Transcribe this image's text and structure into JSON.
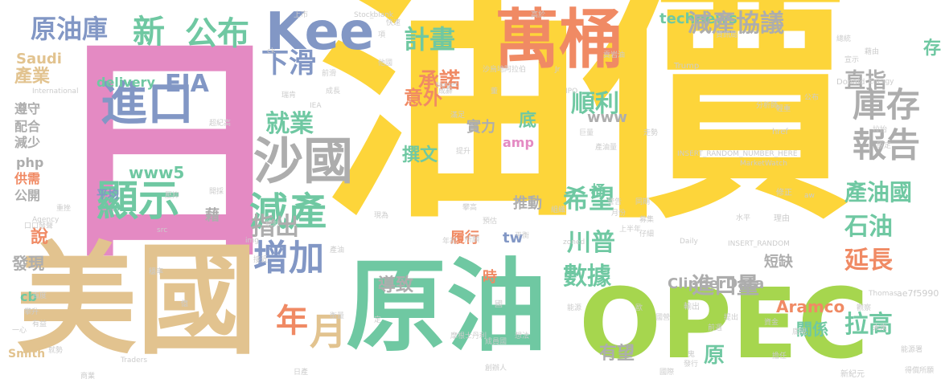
{
  "colors": {
    "yellow": "#FDD53A",
    "pink": "#E48AC3",
    "tan": "#E2C38F",
    "teal": "#6FC8A2",
    "green": "#A6D64E",
    "slate": "#8297C5",
    "gray": "#ADADAD",
    "orange": "#F08A64",
    "lightgray": "#CCCCCC"
  },
  "words": [
    {
      "text": "油價",
      "color": "yellow",
      "size": 330,
      "vertical": false
    },
    {
      "text": "日",
      "color": "pink",
      "size": 300,
      "vertical": false
    },
    {
      "text": "美國",
      "color": "tan",
      "size": 150,
      "vertical": false
    },
    {
      "text": "原油",
      "color": "teal",
      "size": 125,
      "vertical": false
    },
    {
      "text": "OPEC",
      "color": "green",
      "size": 120,
      "vertical": false
    },
    {
      "text": "萬桶",
      "color": "orange",
      "size": 80,
      "vertical": false
    },
    {
      "text": "Kee",
      "color": "slate",
      "size": 64,
      "vertical": false
    },
    {
      "text": "沙國",
      "color": "gray",
      "size": 62,
      "vertical": false
    },
    {
      "text": "進口",
      "color": "slate",
      "size": 58,
      "vertical": false
    },
    {
      "text": "顯示",
      "color": "teal",
      "size": 52,
      "vertical": false
    },
    {
      "text": "減產",
      "color": "teal",
      "size": 48,
      "vertical": false
    },
    {
      "text": "增加",
      "color": "slate",
      "size": 44,
      "vertical": false
    },
    {
      "text": "月",
      "color": "tan",
      "size": 46,
      "vertical": false
    },
    {
      "text": "年",
      "color": "orange",
      "size": 40,
      "vertical": false
    },
    {
      "text": "新",
      "color": "teal",
      "size": 40,
      "vertical": false
    },
    {
      "text": "公布",
      "color": "teal",
      "size": 40,
      "vertical": false
    },
    {
      "text": "原油庫",
      "color": "slate",
      "size": 32,
      "vertical": false
    },
    {
      "text": "下滑",
      "color": "slate",
      "size": 34,
      "vertical": false
    },
    {
      "text": "EIA",
      "color": "slate",
      "size": 30,
      "vertical": false
    },
    {
      "text": "產業",
      "color": "tan",
      "size": 22,
      "vertical": false
    },
    {
      "text": "Saudi",
      "color": "tan",
      "size": 18,
      "vertical": false
    },
    {
      "text": "delivery",
      "color": "teal",
      "size": 16,
      "vertical": false
    },
    {
      "text": "遵守",
      "color": "gray",
      "size": 16,
      "vertical": false
    },
    {
      "text": "配合",
      "color": "gray",
      "size": 16,
      "vertical": false
    },
    {
      "text": "減少",
      "color": "gray",
      "size": 16,
      "vertical": false
    },
    {
      "text": "php",
      "color": "gray",
      "size": 16,
      "vertical": false
    },
    {
      "text": "供需",
      "color": "orange",
      "size": 16,
      "vertical": false
    },
    {
      "text": "公開",
      "color": "gray",
      "size": 16,
      "vertical": false
    },
    {
      "text": "說",
      "color": "orange",
      "size": 22,
      "vertical": false
    },
    {
      "text": "發現",
      "color": "gray",
      "size": 20,
      "vertical": false
    },
    {
      "text": "cb",
      "color": "teal",
      "size": 16,
      "vertical": false
    },
    {
      "text": "Smith",
      "color": "tan",
      "size": 14,
      "vertical": false
    },
    {
      "text": "www5",
      "color": "teal",
      "size": 20,
      "vertical": false
    },
    {
      "text": "平均",
      "color": "slate",
      "size": 14,
      "vertical": false
    },
    {
      "text": "就業",
      "color": "teal",
      "size": 30,
      "vertical": false
    },
    {
      "text": "計畫",
      "color": "teal",
      "size": 32,
      "vertical": false
    },
    {
      "text": "承諾",
      "color": "orange",
      "size": 26,
      "vertical": false
    },
    {
      "text": "意外",
      "color": "orange",
      "size": 24,
      "vertical": false
    },
    {
      "text": "撰文",
      "color": "teal",
      "size": 22,
      "vertical": false
    },
    {
      "text": "指出",
      "color": "gray",
      "size": 30,
      "vertical": false
    },
    {
      "text": "導致",
      "color": "gray",
      "size": 22,
      "vertical": false
    },
    {
      "text": "technews",
      "color": "teal",
      "size": 18,
      "vertical": false
    },
    {
      "text": "減產協議",
      "color": "gray",
      "size": 30,
      "vertical": false
    },
    {
      "text": "直指",
      "color": "gray",
      "size": 26,
      "vertical": false
    },
    {
      "text": "順利",
      "color": "teal",
      "size": 30,
      "vertical": false
    },
    {
      "text": "www",
      "color": "gray",
      "size": 18,
      "vertical": false
    },
    {
      "text": "庫存",
      "color": "gray",
      "size": 42,
      "vertical": false
    },
    {
      "text": "報告",
      "color": "gray",
      "size": 42,
      "vertical": false
    },
    {
      "text": "產油國",
      "color": "teal",
      "size": 28,
      "vertical": false
    },
    {
      "text": "石油",
      "color": "teal",
      "size": 30,
      "vertical": false
    },
    {
      "text": "延長",
      "color": "orange",
      "size": 30,
      "vertical": false
    },
    {
      "text": "拉高",
      "color": "teal",
      "size": 30,
      "vertical": false
    },
    {
      "text": "希望",
      "color": "teal",
      "size": 32,
      "vertical": false
    },
    {
      "text": "川普",
      "color": "teal",
      "size": 30,
      "vertical": false
    },
    {
      "text": "數據",
      "color": "teal",
      "size": 30,
      "vertical": false
    },
    {
      "text": "進口量",
      "color": "gray",
      "size": 28,
      "vertical": false
    },
    {
      "text": "Aramco",
      "color": "orange",
      "size": 20,
      "vertical": false
    },
    {
      "text": "ClipperData",
      "color": "gray",
      "size": 18,
      "vertical": false
    },
    {
      "text": "短缺",
      "color": "gray",
      "size": 18,
      "vertical": false
    },
    {
      "text": "有望",
      "color": "gray",
      "size": 22,
      "vertical": false
    },
    {
      "text": "關係",
      "color": "teal",
      "size": 20,
      "vertical": false
    },
    {
      "text": "原",
      "color": "teal",
      "size": 26,
      "vertical": false
    },
    {
      "text": "推動",
      "color": "gray",
      "size": 18,
      "vertical": false
    },
    {
      "text": "履行",
      "color": "orange",
      "size": 18,
      "vertical": false
    },
    {
      "text": "tw",
      "color": "slate",
      "size": 18,
      "vertical": false
    },
    {
      "text": "實力",
      "color": "gray",
      "size": 18,
      "vertical": false
    },
    {
      "text": "底",
      "color": "teal",
      "size": 22,
      "vertical": false
    },
    {
      "text": "amp",
      "color": "pink",
      "size": 16,
      "vertical": false
    },
    {
      "text": "桶",
      "color": "teal",
      "size": 18,
      "vertical": false
    },
    {
      "text": "時",
      "color": "orange",
      "size": 18,
      "vertical": false
    },
    {
      "text": "存",
      "color": "teal",
      "size": 22,
      "vertical": false
    },
    {
      "text": "藉",
      "color": "gray",
      "size": 18,
      "vertical": false
    },
    {
      "text": "Trump",
      "color": "lightgray",
      "size": 10,
      "vertical": false
    },
    {
      "text": "Donald",
      "color": "lightgray",
      "size": 10,
      "vertical": false
    },
    {
      "text": "MarketWatch",
      "color": "lightgray",
      "size": 9,
      "vertical": false
    },
    {
      "text": "INSERT_RANDOM_NUMBER_HERE",
      "color": "lightgray",
      "size": 9,
      "vertical": false
    },
    {
      "text": "INSERT_RANDOM",
      "color": "lightgray",
      "size": 9,
      "vertical": false
    },
    {
      "text": "href",
      "color": "lightgray",
      "size": 10,
      "vertical": false
    },
    {
      "text": "Energy",
      "color": "lightgray",
      "size": 9,
      "vertical": false
    },
    {
      "text": "Thomas",
      "color": "lightgray",
      "size": 9,
      "vertical": false
    },
    {
      "text": "Traders",
      "color": "lightgray",
      "size": 9,
      "vertical": false
    },
    {
      "text": "Daily",
      "color": "lightgray",
      "size": 9,
      "vertical": false
    },
    {
      "text": "Stock",
      "color": "lightgray",
      "size": 9,
      "vertical": false
    },
    {
      "text": "target",
      "color": "lightgray",
      "size": 9,
      "vertical": false
    },
    {
      "text": "International",
      "color": "lightgray",
      "size": 9,
      "vertical": false
    },
    {
      "text": "Agency",
      "color": "lightgray",
      "size": 9,
      "vertical": false
    },
    {
      "text": "IEA",
      "color": "lightgray",
      "size": 9,
      "vertical": false
    },
    {
      "text": "img",
      "color": "lightgray",
      "size": 9,
      "vertical": false
    },
    {
      "text": "src",
      "color": "lightgray",
      "size": 9,
      "vertical": false
    },
    {
      "text": "IPO",
      "color": "lightgray",
      "size": 9,
      "vertical": false
    },
    {
      "text": "zoned",
      "color": "lightgray",
      "size": 9,
      "vertical": false
    },
    {
      "text": "aw",
      "color": "lightgray",
      "size": 9,
      "vertical": false
    },
    {
      "text": "ae7f5990",
      "color": "lightgray",
      "size": 11,
      "vertical": false
    },
    {
      "text": "_blank",
      "color": "lightgray",
      "size": 9,
      "vertical": false
    },
    {
      "text": "ck",
      "color": "lightgray",
      "size": 9,
      "vertical": false
    },
    {
      "text": "Jr",
      "color": "lightgray",
      "size": 9,
      "vertical": false
    },
    {
      "text": "沙烏地阿拉伯",
      "color": "lightgray",
      "size": 9,
      "vertical": false
    },
    {
      "text": "摩根士丹利",
      "color": "lightgray",
      "size": 9,
      "vertical": false
    },
    {
      "text": "成員國",
      "color": "lightgray",
      "size": 9,
      "vertical": false
    },
    {
      "text": "能源署",
      "color": "lightgray",
      "size": 9,
      "vertical": false
    },
    {
      "text": "得償所願",
      "color": "lightgray",
      "size": 9,
      "vertical": false
    },
    {
      "text": "新紀元",
      "color": "lightgray",
      "size": 10,
      "vertical": false
    },
    {
      "text": "理由",
      "color": "lightgray",
      "size": 10,
      "vertical": false
    },
    {
      "text": "水平",
      "color": "lightgray",
      "size": 9,
      "vertical": false
    },
    {
      "text": "修正",
      "color": "lightgray",
      "size": 10,
      "vertical": false
    },
    {
      "text": "拉抬",
      "color": "lightgray",
      "size": 9,
      "vertical": false
    },
    {
      "text": "原定",
      "color": "lightgray",
      "size": 9,
      "vertical": false
    },
    {
      "text": "分析師",
      "color": "lightgray",
      "size": 9,
      "vertical": false
    },
    {
      "text": "公布",
      "color": "lightgray",
      "size": 9,
      "vertical": false
    },
    {
      "text": "輕重",
      "color": "lightgray",
      "size": 9,
      "vertical": false
    },
    {
      "text": "宣示",
      "color": "lightgray",
      "size": 9,
      "vertical": false
    },
    {
      "text": "藉由",
      "color": "lightgray",
      "size": 9,
      "vertical": false
    },
    {
      "text": "總統",
      "color": "lightgray",
      "size": 9,
      "vertical": false
    },
    {
      "text": "資訊局",
      "color": "lightgray",
      "size": 9,
      "vertical": false
    },
    {
      "text": "高於",
      "color": "lightgray",
      "size": 9,
      "vertical": false
    },
    {
      "text": "上市",
      "color": "lightgray",
      "size": 9,
      "vertical": false
    },
    {
      "text": "快速",
      "color": "lightgray",
      "size": 9,
      "vertical": false
    },
    {
      "text": "貢岩油",
      "color": "lightgray",
      "size": 9,
      "vertical": false
    },
    {
      "text": "他國",
      "color": "lightgray",
      "size": 9,
      "vertical": false
    },
    {
      "text": "前滑",
      "color": "lightgray",
      "size": 9,
      "vertical": false
    },
    {
      "text": "成長",
      "color": "lightgray",
      "size": 9,
      "vertical": false
    },
    {
      "text": "瑞肯",
      "color": "lightgray",
      "size": 9,
      "vertical": false
    },
    {
      "text": "超紀高",
      "color": "lightgray",
      "size": 9,
      "vertical": false
    },
    {
      "text": "開採",
      "color": "lightgray",
      "size": 9,
      "vertical": false
    },
    {
      "text": "壓抑",
      "color": "lightgray",
      "size": 9,
      "vertical": false
    },
    {
      "text": "重挫",
      "color": "lightgray",
      "size": 9,
      "vertical": false
    },
    {
      "text": "口口發聲",
      "color": "lightgray",
      "size": 9,
      "vertical": false
    },
    {
      "text": "穩率",
      "color": "lightgray",
      "size": 9,
      "vertical": false
    },
    {
      "text": "百度",
      "color": "lightgray",
      "size": 9,
      "vertical": false
    },
    {
      "text": "攀升",
      "color": "lightgray",
      "size": 9,
      "vertical": false
    },
    {
      "text": "有益",
      "color": "lightgray",
      "size": 9,
      "vertical": false
    },
    {
      "text": "就勢",
      "color": "lightgray",
      "size": 9,
      "vertical": false
    },
    {
      "text": "商業",
      "color": "lightgray",
      "size": 9,
      "vertical": false
    },
    {
      "text": "日產",
      "color": "lightgray",
      "size": 9,
      "vertical": false
    },
    {
      "text": "創辦人",
      "color": "lightgray",
      "size": 9,
      "vertical": false
    },
    {
      "text": "能源",
      "color": "lightgray",
      "size": 9,
      "vertical": false
    },
    {
      "text": "提出",
      "color": "lightgray",
      "size": 9,
      "vertical": false
    },
    {
      "text": "國營",
      "color": "lightgray",
      "size": 9,
      "vertical": false
    },
    {
      "text": "輸出",
      "color": "lightgray",
      "size": 10,
      "vertical": false
    },
    {
      "text": "前週",
      "color": "lightgray",
      "size": 9,
      "vertical": false
    },
    {
      "text": "觀察",
      "color": "lightgray",
      "size": 9,
      "vertical": false
    },
    {
      "text": "未來",
      "color": "lightgray",
      "size": 9,
      "vertical": false
    },
    {
      "text": "資金",
      "color": "lightgray",
      "size": 9,
      "vertical": false
    },
    {
      "text": "底現",
      "color": "lightgray",
      "size": 9,
      "vertical": false
    },
    {
      "text": "國際",
      "color": "lightgray",
      "size": 9,
      "vertical": false
    },
    {
      "text": "發行",
      "color": "lightgray",
      "size": 9,
      "vertical": false
    },
    {
      "text": "擔任",
      "color": "lightgray",
      "size": 9,
      "vertical": false
    },
    {
      "text": "鬼",
      "color": "lightgray",
      "size": 9,
      "vertical": false
    },
    {
      "text": "國",
      "color": "lightgray",
      "size": 10,
      "vertical": false
    },
    {
      "text": "想法",
      "color": "lightgray",
      "size": 9,
      "vertical": false
    },
    {
      "text": "年初",
      "color": "lightgray",
      "size": 9,
      "vertical": false
    },
    {
      "text": "所願",
      "color": "lightgray",
      "size": 9,
      "vertical": false
    },
    {
      "text": "平衡",
      "color": "lightgray",
      "size": 9,
      "vertical": false
    },
    {
      "text": "預估",
      "color": "lightgray",
      "size": 9,
      "vertical": false
    },
    {
      "text": "攀高",
      "color": "lightgray",
      "size": 9,
      "vertical": false
    },
    {
      "text": "提升",
      "color": "lightgray",
      "size": 9,
      "vertical": false
    },
    {
      "text": "產油量",
      "color": "lightgray",
      "size": 9,
      "vertical": false
    },
    {
      "text": "同期",
      "color": "lightgray",
      "size": 9,
      "vertical": false
    },
    {
      "text": "月份",
      "color": "lightgray",
      "size": 9,
      "vertical": false
    },
    {
      "text": "上半年",
      "color": "lightgray",
      "size": 9,
      "vertical": false
    },
    {
      "text": "仔細",
      "color": "lightgray",
      "size": 9,
      "vertical": false
    },
    {
      "text": "募集",
      "color": "lightgray",
      "size": 9,
      "vertical": false
    },
    {
      "text": "警告",
      "color": "lightgray",
      "size": 9,
      "vertical": false
    },
    {
      "text": "走勢",
      "color": "lightgray",
      "size": 9,
      "vertical": false
    },
    {
      "text": "巨量",
      "color": "lightgray",
      "size": 9,
      "vertical": false
    },
    {
      "text": "組織",
      "color": "lightgray",
      "size": 9,
      "vertical": false
    },
    {
      "text": "統計",
      "color": "lightgray",
      "size": 9,
      "vertical": false
    },
    {
      "text": "接近",
      "color": "lightgray",
      "size": 9,
      "vertical": false
    },
    {
      "text": "一心",
      "color": "lightgray",
      "size": 9,
      "vertical": false
    },
    {
      "text": "現為",
      "color": "lightgray",
      "size": 9,
      "vertical": false
    },
    {
      "text": "滿足",
      "color": "lightgray",
      "size": 9,
      "vertical": false
    },
    {
      "text": "成辭",
      "color": "lightgray",
      "size": 9,
      "vertical": false
    },
    {
      "text": "項",
      "color": "lightgray",
      "size": 9,
      "vertical": false
    },
    {
      "text": "董",
      "color": "lightgray",
      "size": 9,
      "vertical": false
    },
    {
      "text": "歐",
      "color": "lightgray",
      "size": 9,
      "vertical": false
    },
    {
      "text": "定",
      "color": "lightgray",
      "size": 9,
      "vertical": false
    },
    {
      "text": "產油",
      "color": "lightgray",
      "size": 9,
      "vertical": false
    },
    {
      "text": "億",
      "color": "lightgray",
      "size": 9,
      "vertical": false
    },
    {
      "text": "衡量",
      "color": "lightgray",
      "size": 9,
      "vertical": false
    }
  ]
}
